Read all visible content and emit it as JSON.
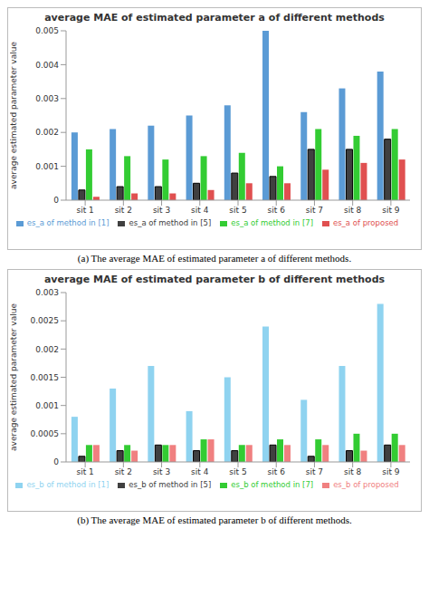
{
  "chart_data": [
    {
      "type": "bar",
      "title": "average MAE of estimated parameter a of different methods",
      "caption": "(a) The average MAE of estimated parameter a of different methods.",
      "y_label": "average estimated parameter value",
      "categories": [
        "sit 1",
        "sit 2",
        "sit 3",
        "sit 4",
        "sit 5",
        "sit 6",
        "sit 7",
        "sit 8",
        "sit 9"
      ],
      "series": [
        {
          "name": "es_a of method in [1]",
          "color": "#5b9bd5",
          "values": [
            0.002,
            0.0021,
            0.0022,
            0.0025,
            0.0028,
            0.005,
            0.0026,
            0.0033,
            0.0038
          ]
        },
        {
          "name": "es_a of method in [5]",
          "color": "#404040",
          "values": [
            0.0003,
            0.0004,
            0.0004,
            0.0005,
            0.0008,
            0.0007,
            0.0015,
            0.0015,
            0.0018
          ]
        },
        {
          "name": "es_a of method in [7]",
          "color": "#33cc33",
          "values": [
            0.0015,
            0.0013,
            0.0012,
            0.0013,
            0.0014,
            0.001,
            0.0021,
            0.0019,
            0.0021
          ]
        },
        {
          "name": "es_a of proposed",
          "color": "#e05050",
          "values": [
            0.0001,
            0.0002,
            0.0002,
            0.0003,
            0.0005,
            0.0005,
            0.0009,
            0.0011,
            0.0012
          ]
        }
      ],
      "ylim": [
        0,
        0.005
      ],
      "yticks": [
        0,
        0.001,
        0.002,
        0.003,
        0.004,
        0.005
      ],
      "grid": false,
      "legend": "bottom"
    },
    {
      "type": "bar",
      "title": "average MAE of estimated parameter b of different methods",
      "caption": "(b) The average MAE of estimated parameter b of different methods.",
      "y_label": "average estimated parameter value",
      "categories": [
        "sit 1",
        "sit 2",
        "sit 3",
        "sit 4",
        "sit 5",
        "sit 6",
        "sit 7",
        "sit 8",
        "sit 9"
      ],
      "series": [
        {
          "name": "es_b of method in [1]",
          "color": "#8fd3f0",
          "values": [
            0.0008,
            0.0013,
            0.0017,
            0.0009,
            0.0015,
            0.0024,
            0.0011,
            0.0017,
            0.0028
          ]
        },
        {
          "name": "es_b of method in [5]",
          "color": "#404040",
          "values": [
            0.0001,
            0.0002,
            0.0003,
            0.0002,
            0.0002,
            0.0003,
            0.0001,
            0.0002,
            0.0003
          ]
        },
        {
          "name": "es_b of method in [7]",
          "color": "#33cc33",
          "values": [
            0.0003,
            0.0003,
            0.0003,
            0.0004,
            0.0003,
            0.0004,
            0.0004,
            0.0005,
            0.0005
          ]
        },
        {
          "name": "es_b of proposed",
          "color": "#f08080",
          "values": [
            0.0003,
            0.0002,
            0.0003,
            0.0004,
            0.0003,
            0.0003,
            0.0003,
            0.0002,
            0.0003
          ]
        }
      ],
      "ylim": [
        0,
        0.003
      ],
      "yticks": [
        0,
        0.0005,
        0.001,
        0.0015,
        0.002,
        0.0025,
        0.003
      ],
      "grid": false,
      "legend": "bottom"
    }
  ]
}
